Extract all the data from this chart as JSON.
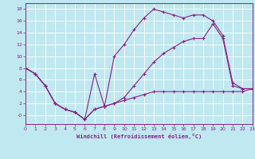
{
  "title": "",
  "xlabel": "Windchill (Refroidissement éolien,°C)",
  "ylabel": "",
  "bg_color": "#c0e8f0",
  "grid_color": "#aad4dc",
  "line_color": "#882288",
  "ylim": [
    -1.5,
    19
  ],
  "xlim": [
    0,
    23
  ],
  "yticks": [
    0,
    2,
    4,
    6,
    8,
    10,
    12,
    14,
    16,
    18
  ],
  "ytick_labels": [
    "-0",
    "2",
    "4",
    "6",
    "8",
    "10",
    "12",
    "14",
    "16",
    "18"
  ],
  "xticks": [
    0,
    1,
    2,
    3,
    4,
    5,
    6,
    7,
    8,
    9,
    10,
    11,
    12,
    13,
    14,
    15,
    16,
    17,
    18,
    19,
    20,
    21,
    22,
    23
  ],
  "series1_x": [
    0,
    1,
    2,
    3,
    4,
    5,
    6,
    7,
    8,
    9,
    10,
    11,
    12,
    13,
    14,
    15,
    16,
    17,
    18,
    19,
    20,
    21,
    22,
    23
  ],
  "series1_y": [
    8,
    7,
    5,
    2,
    1,
    0.5,
    -0.7,
    7,
    1.5,
    10,
    12,
    14.5,
    16.5,
    18,
    17.5,
    17,
    16.5,
    17,
    17,
    16,
    13.5,
    5.5,
    4.5,
    4.5
  ],
  "series2_x": [
    0,
    1,
    2,
    3,
    4,
    5,
    6,
    7,
    8,
    9,
    10,
    11,
    12,
    13,
    14,
    15,
    16,
    17,
    18,
    19,
    20,
    21,
    22,
    23
  ],
  "series2_y": [
    8,
    7,
    5,
    2,
    1,
    0.5,
    -0.7,
    1,
    1.5,
    2,
    2.5,
    3,
    3.5,
    4,
    4,
    4,
    4,
    4,
    4,
    4,
    4,
    4,
    4,
    4.5
  ],
  "series3_x": [
    0,
    1,
    2,
    3,
    4,
    5,
    6,
    7,
    8,
    9,
    10,
    11,
    12,
    13,
    14,
    15,
    16,
    17,
    18,
    19,
    20,
    21,
    22,
    23
  ],
  "series3_y": [
    8,
    7,
    5,
    2,
    1,
    0.5,
    -0.7,
    1,
    1.5,
    2,
    3,
    5,
    7,
    9,
    10.5,
    11.5,
    12.5,
    13,
    13,
    15.5,
    13,
    5,
    4.5,
    4.5
  ]
}
